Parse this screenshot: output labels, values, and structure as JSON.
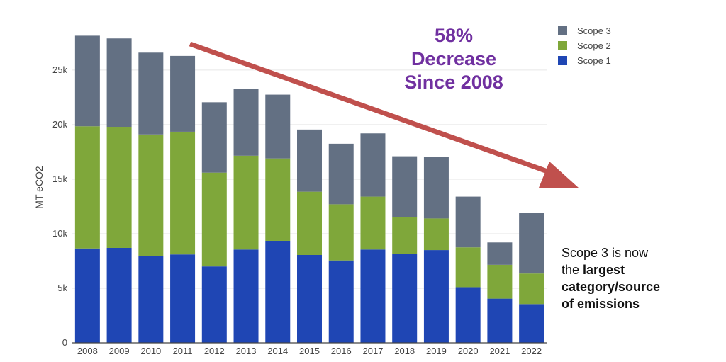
{
  "chart_data": {
    "type": "bar",
    "stacked": true,
    "categories": [
      "2008",
      "2009",
      "2010",
      "2011",
      "2012",
      "2013",
      "2014",
      "2015",
      "2016",
      "2017",
      "2018",
      "2019",
      "2020",
      "2021",
      "2022"
    ],
    "series": [
      {
        "name": "Scope 1",
        "color": "#1f46b4",
        "values": [
          8650,
          8700,
          7950,
          8100,
          7000,
          8550,
          9350,
          8050,
          7550,
          8550,
          8150,
          8500,
          5100,
          4050,
          3550
        ]
      },
      {
        "name": "Scope 2",
        "color": "#7fa73a",
        "values": [
          11200,
          11100,
          11150,
          11250,
          8600,
          8600,
          7550,
          5800,
          5150,
          4850,
          3400,
          2900,
          3650,
          3100,
          2800
        ]
      },
      {
        "name": "Scope 3",
        "color": "#637083",
        "values": [
          8300,
          8100,
          7500,
          6950,
          6450,
          6150,
          5850,
          5700,
          5550,
          5800,
          5550,
          5650,
          4650,
          2050,
          5550
        ]
      }
    ],
    "legend_order": [
      "Scope 3",
      "Scope 2",
      "Scope 1"
    ],
    "ylabel": "MT eCO2",
    "xlabel": "",
    "ylim": [
      0,
      28500
    ],
    "yticks": [
      0,
      5000,
      10000,
      15000,
      20000,
      25000
    ],
    "ytick_labels": [
      "0",
      "5k",
      "10k",
      "15k",
      "20k",
      "25k"
    ],
    "grid": true,
    "legend_position": "top-right"
  },
  "annotations": {
    "headline": [
      "58%",
      "Decrease",
      "Since 2008"
    ],
    "headline_color": "#7030a0",
    "arrow_color": "#c0504d",
    "note": {
      "line1": "Scope 3 is now",
      "line2_prefix": "the ",
      "line2_bold": "largest",
      "line3_bold": "category/source",
      "line4_bold": "of emissions"
    }
  }
}
